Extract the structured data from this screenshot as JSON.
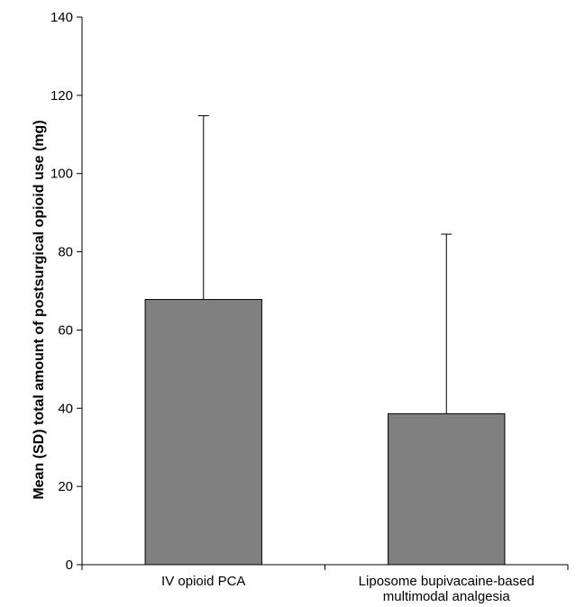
{
  "chart_data": {
    "type": "bar",
    "categories": [
      [
        "IV opioid PCA"
      ],
      [
        "Liposome bupivacaine-based",
        "multimodal analgesia"
      ]
    ],
    "values": [
      67.8,
      38.6
    ],
    "error_upper": [
      114.8,
      84.5
    ],
    "ylabel": "Mean (SD) total amount of postsurgical opioid use (mg)",
    "xlabel": "",
    "ylim": [
      0,
      140
    ],
    "yticks": [
      0,
      20,
      40,
      60,
      80,
      100,
      120,
      140
    ],
    "grid": false,
    "bar_color": "#808080",
    "bar_edge_color": "#000000"
  }
}
